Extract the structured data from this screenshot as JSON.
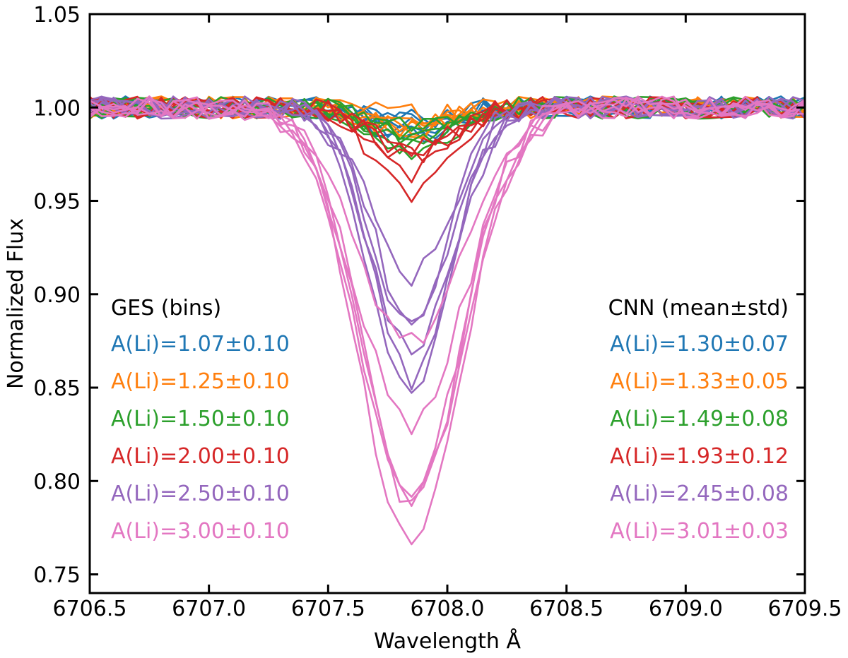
{
  "chart_data": {
    "type": "line",
    "xlabel": "Wavelength Å",
    "ylabel": "Normalized Flux",
    "xlim": [
      6706.5,
      6709.5
    ],
    "ylim": [
      0.74,
      1.05
    ],
    "xticks": [
      6706.5,
      6707.0,
      6707.5,
      6708.0,
      6708.5,
      6709.0,
      6709.5
    ],
    "xtick_labels": [
      "6706.5",
      "6707.0",
      "6707.5",
      "6708.0",
      "6708.5",
      "6709.0",
      "6709.5"
    ],
    "yticks": [
      0.75,
      0.8,
      0.85,
      0.9,
      0.95,
      1.0,
      1.05
    ],
    "ytick_labels": [
      "0.75",
      "0.80",
      "0.85",
      "0.90",
      "0.95",
      "1.00",
      "1.05"
    ],
    "grid": false,
    "line_center": 6707.85,
    "x_step": 0.05,
    "legend_left_title": "GES (bins)",
    "legend_right_title": "CNN (mean±std)",
    "groups": [
      {
        "color": "#1f77b4",
        "ges_label": "A(Li)=1.07±0.10",
        "cnn_label": "A(Li)=1.30±0.07",
        "depths": [
          0.008,
          0.012,
          0.018,
          0.01,
          0.015,
          0.006
        ],
        "widths": [
          0.16,
          0.17,
          0.15,
          0.16,
          0.17,
          0.16
        ]
      },
      {
        "color": "#ff7f0e",
        "ges_label": "A(Li)=1.25±0.10",
        "cnn_label": "A(Li)=1.33±0.05",
        "depths": [
          0.005,
          0.01,
          0.015,
          0.012,
          0.008,
          0.003
        ],
        "widths": [
          0.16,
          0.17,
          0.15,
          0.16,
          0.17,
          0.16
        ]
      },
      {
        "color": "#2ca02c",
        "ges_label": "A(Li)=1.50±0.10",
        "cnn_label": "A(Li)=1.49±0.08",
        "depths": [
          0.012,
          0.02,
          0.025,
          0.015,
          0.018,
          0.01
        ],
        "widths": [
          0.16,
          0.17,
          0.15,
          0.16,
          0.17,
          0.16
        ]
      },
      {
        "color": "#d62728",
        "ges_label": "A(Li)=2.00±0.10",
        "cnn_label": "A(Li)=1.93±0.12",
        "depths": [
          0.048,
          0.035,
          0.025,
          0.03,
          0.02
        ],
        "widths": [
          0.15,
          0.14,
          0.16,
          0.15,
          0.17
        ]
      },
      {
        "color": "#9467bd",
        "ges_label": "A(Li)=2.50±0.10",
        "cnn_label": "A(Li)=2.45±0.08",
        "depths": [
          0.15,
          0.145,
          0.13,
          0.12,
          0.115,
          0.09
        ],
        "widths": [
          0.17,
          0.16,
          0.17,
          0.16,
          0.15,
          0.17
        ]
      },
      {
        "color": "#e377c2",
        "ges_label": "A(Li)=3.00±0.10",
        "cnn_label": "A(Li)=3.01±0.03",
        "depths": [
          0.235,
          0.215,
          0.205,
          0.21,
          0.17,
          0.125
        ],
        "widths": [
          0.21,
          0.2,
          0.21,
          0.22,
          0.22,
          0.23
        ]
      }
    ]
  }
}
